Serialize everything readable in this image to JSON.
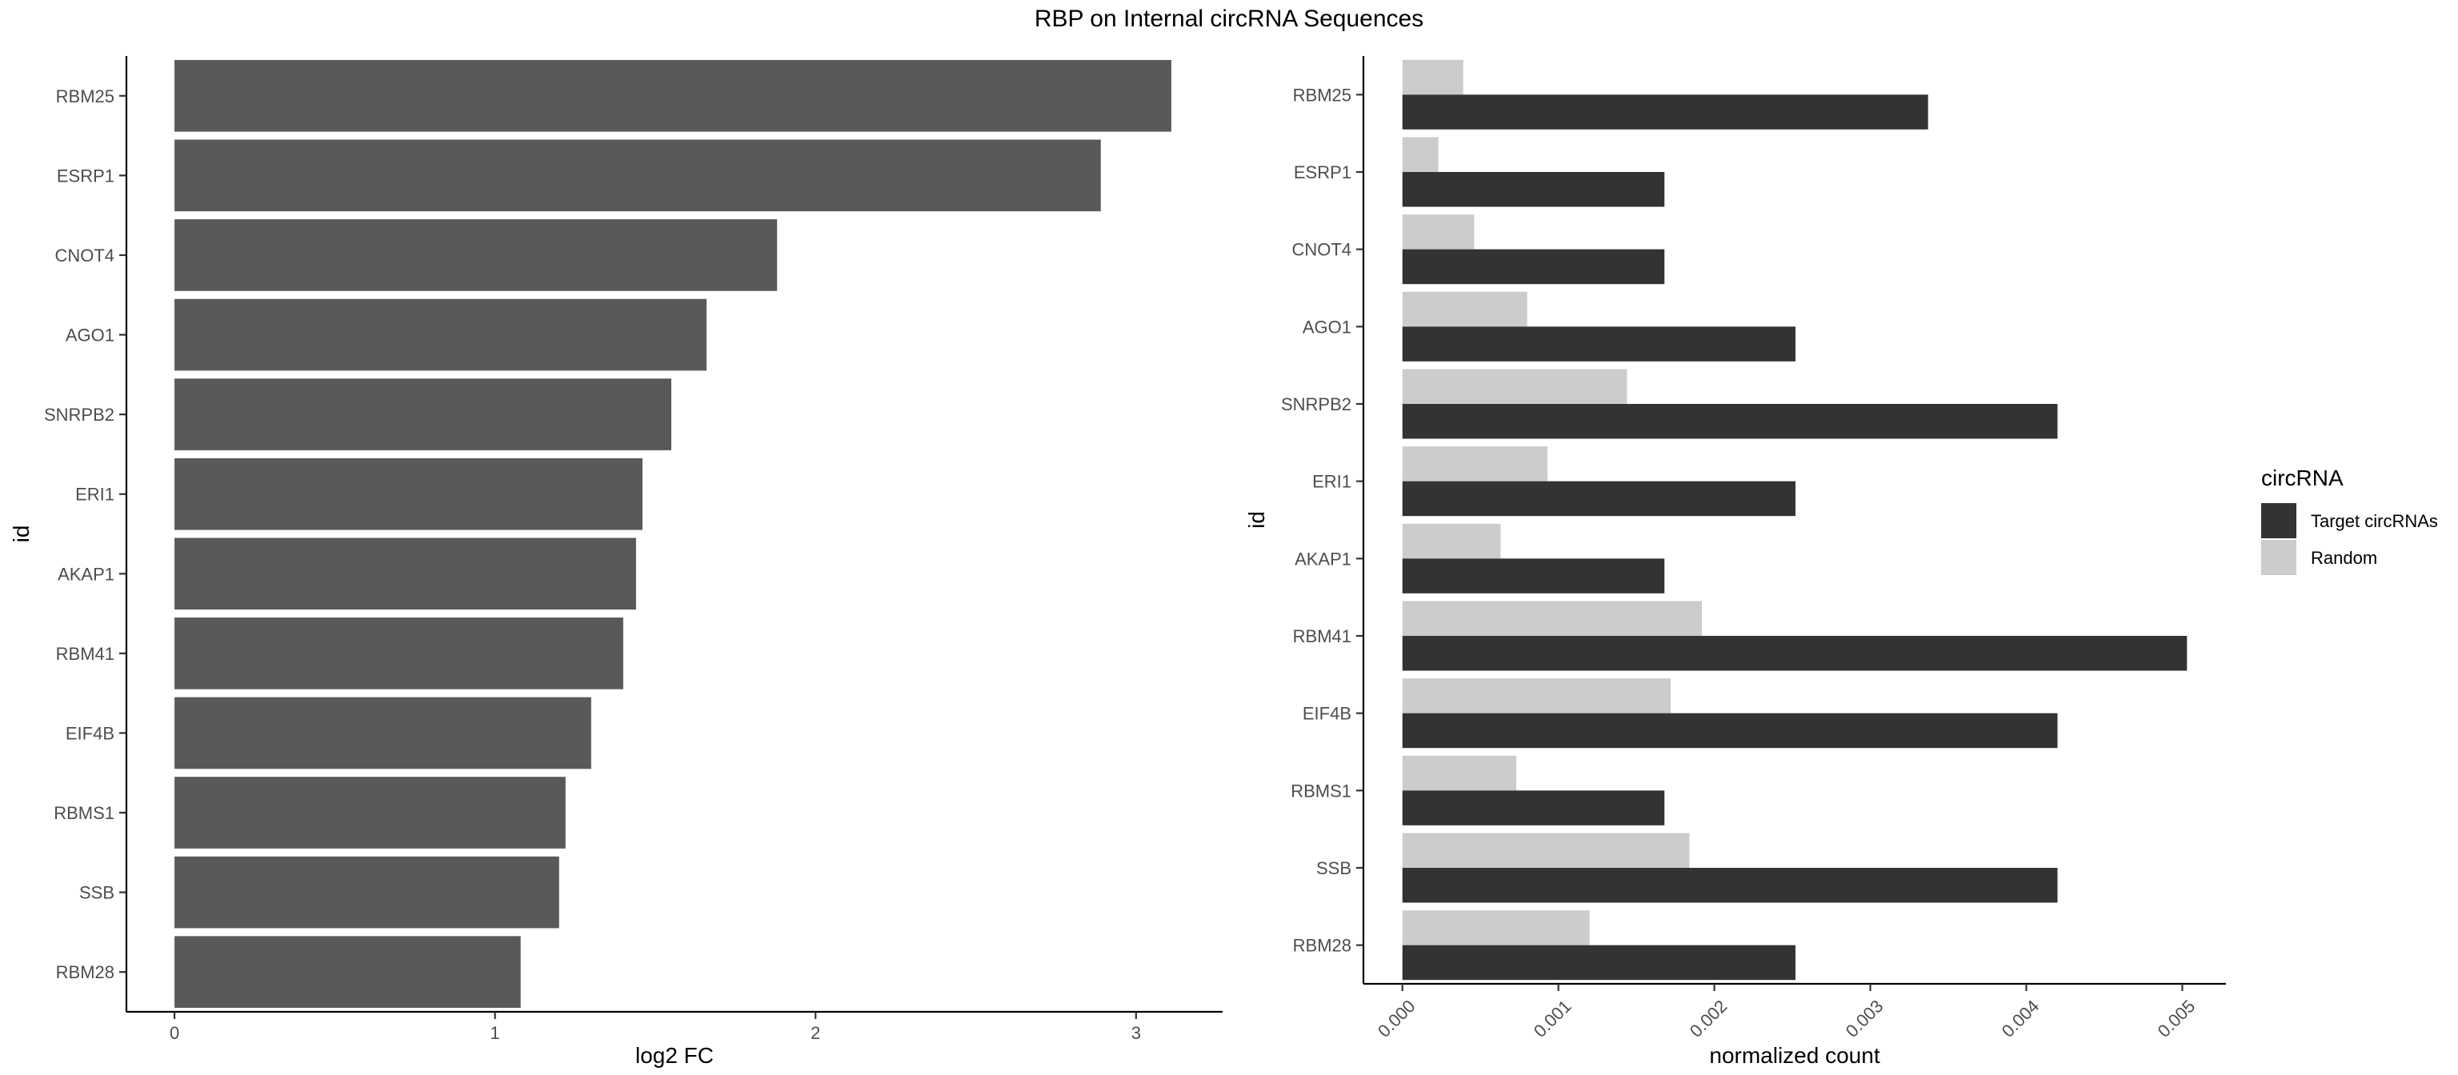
{
  "title": "RBP on Internal circRNA Sequences",
  "chart_data": [
    {
      "type": "bar",
      "orientation": "horizontal",
      "categories": [
        "RBM25",
        "ESRP1",
        "CNOT4",
        "AGO1",
        "SNRPB2",
        "ERI1",
        "AKAP1",
        "RBM41",
        "EIF4B",
        "RBMS1",
        "SSB",
        "RBM28"
      ],
      "values": [
        3.11,
        2.89,
        1.88,
        1.66,
        1.55,
        1.46,
        1.44,
        1.4,
        1.3,
        1.22,
        1.2,
        1.08
      ],
      "xlabel": "log2 FC",
      "ylabel": "id",
      "xlim": [
        -0.15,
        3.27
      ],
      "xticks": [
        0,
        1,
        2,
        3
      ],
      "xtick_labels": [
        "0",
        "1",
        "2",
        "3"
      ],
      "bar_color": "#595959",
      "grid": false
    },
    {
      "type": "bar",
      "orientation": "horizontal",
      "categories": [
        "RBM25",
        "ESRP1",
        "CNOT4",
        "AGO1",
        "SNRPB2",
        "ERI1",
        "AKAP1",
        "RBM41",
        "EIF4B",
        "RBMS1",
        "SSB",
        "RBM28"
      ],
      "series": [
        {
          "name": "Target circRNAs",
          "color": "#333333",
          "values": [
            0.00337,
            0.00168,
            0.00168,
            0.00252,
            0.0042,
            0.00252,
            0.00168,
            0.00503,
            0.0042,
            0.00168,
            0.0042,
            0.00252
          ]
        },
        {
          "name": "Random",
          "color": "#cccccc",
          "values": [
            0.00039,
            0.00023,
            0.00046,
            0.0008,
            0.00144,
            0.00093,
            0.00063,
            0.00192,
            0.00172,
            0.00073,
            0.00184,
            0.0012
          ]
        }
      ],
      "xlabel": "normalized count",
      "ylabel": "id",
      "xlim": [
        -0.00025,
        0.00528
      ],
      "xticks": [
        0,
        0.001,
        0.002,
        0.003,
        0.004,
        0.005
      ],
      "xtick_labels": [
        "0.000",
        "0.001",
        "0.002",
        "0.003",
        "0.004",
        "0.005"
      ],
      "grid": false,
      "legend": {
        "title": "circRNA",
        "position": "right",
        "entries": [
          "Target circRNAs",
          "Random"
        ]
      }
    }
  ]
}
